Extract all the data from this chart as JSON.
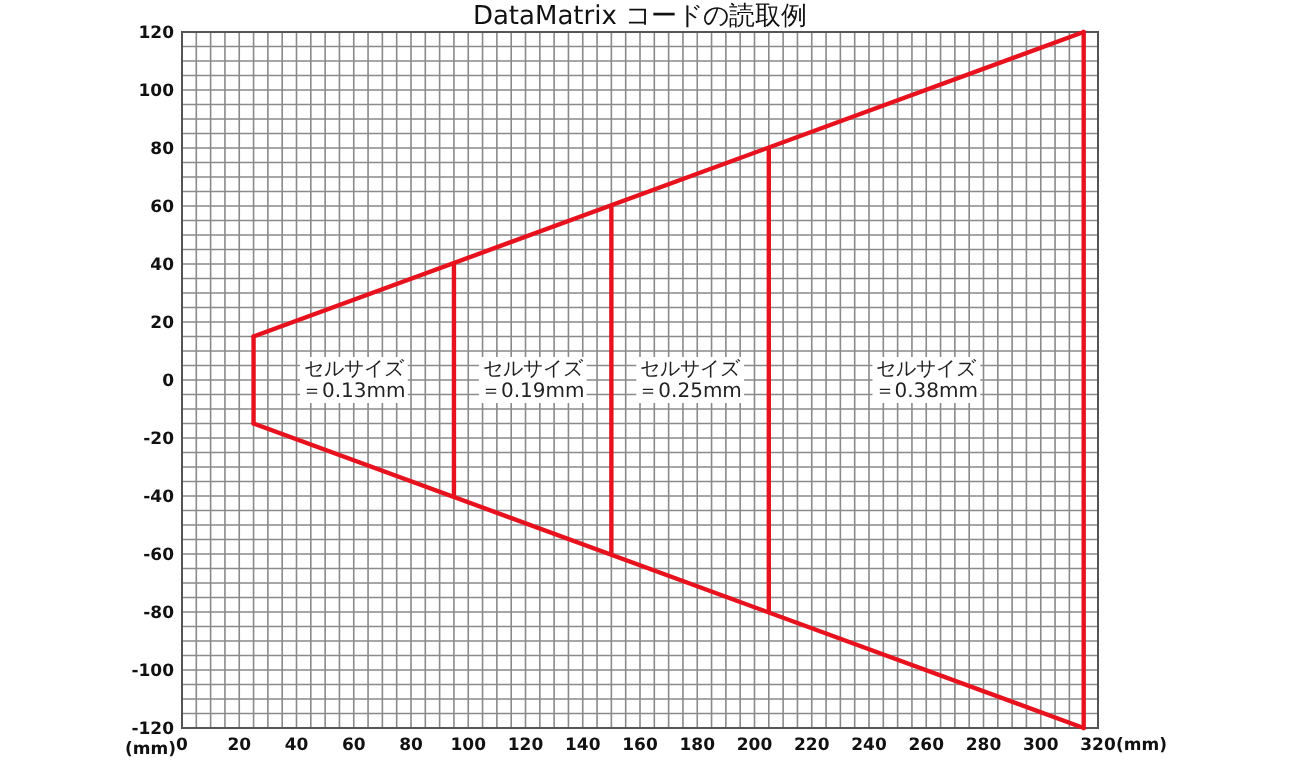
{
  "chart_data": {
    "type": "line",
    "title": "DataMatrix コードの読取例",
    "xlabel": "(mm)",
    "ylabel": "(mm)",
    "xlim": [
      0,
      320
    ],
    "ylim": [
      -120,
      120
    ],
    "xticks": [
      0,
      20,
      40,
      60,
      80,
      100,
      120,
      140,
      160,
      180,
      200,
      220,
      240,
      260,
      280,
      300,
      320
    ],
    "yticks": [
      -120,
      -100,
      -80,
      -60,
      -40,
      -20,
      0,
      20,
      40,
      60,
      80,
      100,
      120
    ],
    "grid": true,
    "marker": "none",
    "line_style": "solid",
    "series": [
      {
        "color": "#e8121e",
        "x": [
          25,
          315
        ],
        "values": [
          15,
          120
        ]
      },
      {
        "color": "#e8121e",
        "x": [
          25,
          315
        ],
        "values": [
          -15,
          -120
        ]
      },
      {
        "color": "#e8121e",
        "x": [
          25,
          25
        ],
        "values": [
          15,
          -15
        ]
      },
      {
        "color": "#e8121e",
        "x": [
          315,
          315
        ],
        "values": [
          120,
          -120
        ]
      },
      {
        "color": "#e8121e",
        "x": [
          95,
          95
        ],
        "values": [
          40,
          -40
        ]
      },
      {
        "color": "#e8121e",
        "x": [
          150,
          150
        ],
        "values": [
          60,
          -60
        ]
      },
      {
        "color": "#e8121e",
        "x": [
          205,
          205
        ],
        "values": [
          80,
          -80
        ]
      }
    ],
    "annotations": [
      "セルサイズ＝0.13mm",
      "セルサイズ＝0.19mm",
      "セルサイズ＝0.25mm",
      "セルサイズ＝0.38mm"
    ]
  }
}
